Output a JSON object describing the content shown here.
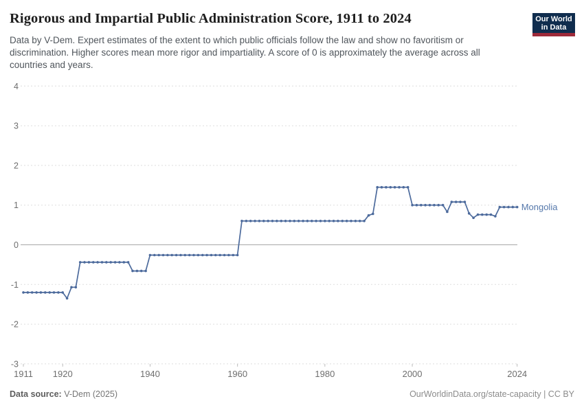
{
  "header": {
    "title": "Rigorous and Impartial Public Administration Score, 1911 to 2024",
    "subtitle": "Data by V-Dem. Expert estimates of the extent to which public officials follow the law and show no favoritism or discrimination. Higher scores mean more rigor and impartiality. A score of 0 is approximately the average across all countries and years.",
    "logo": {
      "line1": "Our World",
      "line2": "in Data"
    }
  },
  "footer": {
    "source_label": "Data source:",
    "source_value": " V-Dem (2025)",
    "license": "OurWorldinData.org/state-capacity | CC BY"
  },
  "colors": {
    "line": "#4c6a9c",
    "entity_label": "#5578ab",
    "grid": "#dddddd",
    "zero_line": "#a6a6a6",
    "tick_mark": "#bbbbbb",
    "axis_text": "#6e6e6e",
    "logo_bg": "#102d4e",
    "logo_bar": "#9e2a3a"
  },
  "chart_data": {
    "type": "line",
    "title": "Rigorous and Impartial Public Administration Score, 1911 to 2024",
    "entity": "Mongolia",
    "xlabel": "",
    "ylabel": "",
    "x_range": [
      1911,
      2024
    ],
    "y_range": [
      -3,
      4
    ],
    "x_ticks": [
      1911,
      1920,
      1940,
      1960,
      1980,
      2000,
      2024
    ],
    "y_ticks": [
      4,
      3,
      2,
      1,
      0,
      -1,
      -2,
      -3
    ],
    "grid": "horizontal-dashed, solid zero line, point marker per year",
    "legend_position": "end-of-line label",
    "series": [
      {
        "name": "Mongolia",
        "points": [
          [
            1911,
            -1.2
          ],
          [
            1912,
            -1.2
          ],
          [
            1913,
            -1.2
          ],
          [
            1914,
            -1.2
          ],
          [
            1915,
            -1.2
          ],
          [
            1916,
            -1.2
          ],
          [
            1917,
            -1.2
          ],
          [
            1918,
            -1.2
          ],
          [
            1919,
            -1.2
          ],
          [
            1920,
            -1.2
          ],
          [
            1921,
            -1.35
          ],
          [
            1922,
            -1.07
          ],
          [
            1923,
            -1.07
          ],
          [
            1924,
            -0.44
          ],
          [
            1925,
            -0.44
          ],
          [
            1926,
            -0.44
          ],
          [
            1927,
            -0.44
          ],
          [
            1928,
            -0.44
          ],
          [
            1929,
            -0.44
          ],
          [
            1930,
            -0.44
          ],
          [
            1931,
            -0.44
          ],
          [
            1932,
            -0.44
          ],
          [
            1933,
            -0.44
          ],
          [
            1934,
            -0.44
          ],
          [
            1935,
            -0.44
          ],
          [
            1936,
            -0.66
          ],
          [
            1937,
            -0.66
          ],
          [
            1938,
            -0.66
          ],
          [
            1939,
            -0.66
          ],
          [
            1940,
            -0.26
          ],
          [
            1941,
            -0.26
          ],
          [
            1942,
            -0.26
          ],
          [
            1943,
            -0.26
          ],
          [
            1944,
            -0.26
          ],
          [
            1945,
            -0.26
          ],
          [
            1946,
            -0.26
          ],
          [
            1947,
            -0.26
          ],
          [
            1948,
            -0.26
          ],
          [
            1949,
            -0.26
          ],
          [
            1950,
            -0.26
          ],
          [
            1951,
            -0.26
          ],
          [
            1952,
            -0.26
          ],
          [
            1953,
            -0.26
          ],
          [
            1954,
            -0.26
          ],
          [
            1955,
            -0.26
          ],
          [
            1956,
            -0.26
          ],
          [
            1957,
            -0.26
          ],
          [
            1958,
            -0.26
          ],
          [
            1959,
            -0.26
          ],
          [
            1960,
            -0.26
          ],
          [
            1961,
            0.6
          ],
          [
            1962,
            0.6
          ],
          [
            1963,
            0.6
          ],
          [
            1964,
            0.6
          ],
          [
            1965,
            0.6
          ],
          [
            1966,
            0.6
          ],
          [
            1967,
            0.6
          ],
          [
            1968,
            0.6
          ],
          [
            1969,
            0.6
          ],
          [
            1970,
            0.6
          ],
          [
            1971,
            0.6
          ],
          [
            1972,
            0.6
          ],
          [
            1973,
            0.6
          ],
          [
            1974,
            0.6
          ],
          [
            1975,
            0.6
          ],
          [
            1976,
            0.6
          ],
          [
            1977,
            0.6
          ],
          [
            1978,
            0.6
          ],
          [
            1979,
            0.6
          ],
          [
            1980,
            0.6
          ],
          [
            1981,
            0.6
          ],
          [
            1982,
            0.6
          ],
          [
            1983,
            0.6
          ],
          [
            1984,
            0.6
          ],
          [
            1985,
            0.6
          ],
          [
            1986,
            0.6
          ],
          [
            1987,
            0.6
          ],
          [
            1988,
            0.6
          ],
          [
            1989,
            0.6
          ],
          [
            1990,
            0.74
          ],
          [
            1991,
            0.78
          ],
          [
            1992,
            1.45
          ],
          [
            1993,
            1.45
          ],
          [
            1994,
            1.45
          ],
          [
            1995,
            1.45
          ],
          [
            1996,
            1.45
          ],
          [
            1997,
            1.45
          ],
          [
            1998,
            1.45
          ],
          [
            1999,
            1.45
          ],
          [
            2000,
            1.0
          ],
          [
            2001,
            1.0
          ],
          [
            2002,
            1.0
          ],
          [
            2003,
            1.0
          ],
          [
            2004,
            1.0
          ],
          [
            2005,
            1.0
          ],
          [
            2006,
            1.0
          ],
          [
            2007,
            1.0
          ],
          [
            2008,
            0.83
          ],
          [
            2009,
            1.08
          ],
          [
            2010,
            1.08
          ],
          [
            2011,
            1.08
          ],
          [
            2012,
            1.08
          ],
          [
            2013,
            0.79
          ],
          [
            2014,
            0.68
          ],
          [
            2015,
            0.76
          ],
          [
            2016,
            0.76
          ],
          [
            2017,
            0.76
          ],
          [
            2018,
            0.76
          ],
          [
            2019,
            0.72
          ],
          [
            2020,
            0.95
          ],
          [
            2021,
            0.95
          ],
          [
            2022,
            0.95
          ],
          [
            2023,
            0.95
          ],
          [
            2024,
            0.95
          ]
        ]
      }
    ]
  }
}
